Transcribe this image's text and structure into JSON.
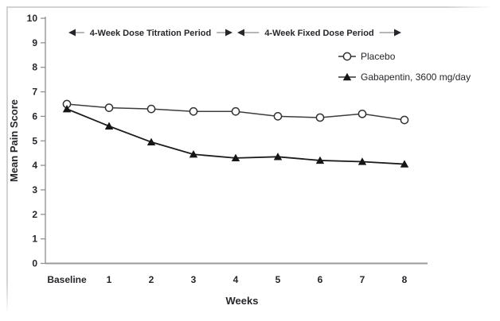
{
  "figure": {
    "y_axis_label": "Mean Pain Score",
    "x_axis_label": "Weeks",
    "annotations": [
      {
        "label": "4-Week Dose Titration Period",
        "from_index": 0,
        "to_index": 4
      },
      {
        "label": "4-Week Fixed Dose Period",
        "from_index": 4,
        "to_index": 8
      }
    ],
    "legend": [
      {
        "label": "Placebo",
        "marker": "open-circle"
      },
      {
        "label": "Gabapentin, 3600 mg/day",
        "marker": "filled-triangle"
      }
    ],
    "colors": {
      "text": "#26262b",
      "axis": "#9b9b9b",
      "tick": "#8a8a8a",
      "placebo_line": "#3d3d3d",
      "gabapentin_line": "#1c1c1c",
      "marker_fill_open": "#ffffff",
      "marker_fill_solid": "#161616",
      "background": "#ffffff",
      "frame_border": "#d2d2d2"
    }
  },
  "chart_data": {
    "type": "line",
    "categories": [
      "Baseline",
      "1",
      "2",
      "3",
      "4",
      "5",
      "6",
      "7",
      "8"
    ],
    "series": [
      {
        "name": "Placebo",
        "marker": "open-circle",
        "values": [
          6.5,
          6.35,
          6.3,
          6.2,
          6.2,
          6.0,
          5.95,
          6.1,
          5.85
        ]
      },
      {
        "name": "Gabapentin, 3600 mg/day",
        "marker": "filled-triangle",
        "values": [
          6.3,
          5.6,
          4.95,
          4.45,
          4.3,
          4.35,
          4.2,
          4.15,
          4.05
        ]
      }
    ],
    "title": "",
    "xlabel": "Weeks",
    "ylabel": "Mean Pain Score",
    "ylim": [
      0,
      10
    ],
    "yticks": [
      0,
      1,
      2,
      3,
      4,
      5,
      6,
      7,
      8,
      9,
      10
    ],
    "grid": false,
    "legend_position": "upper-right"
  }
}
